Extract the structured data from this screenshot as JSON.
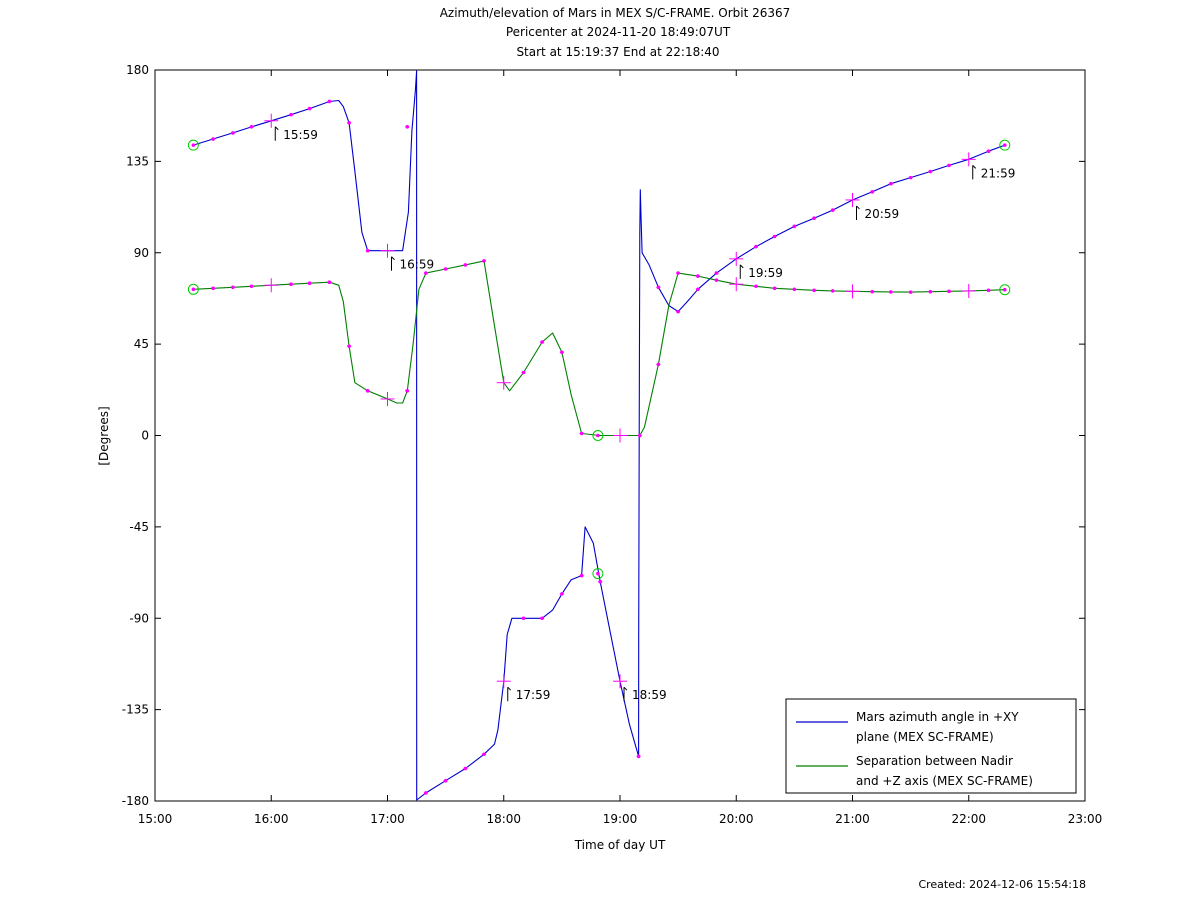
{
  "chart_data": {
    "type": "line",
    "title": "Azimuth/elevation of Mars in MEX S/C-FRAME.  Orbit 26367",
    "subtitle": [
      "Pericenter at 2024-11-20 18:49:07UT",
      "Start at 15:19:37 End at 22:18:40"
    ],
    "xlabel": "Time of day UT",
    "ylabel": "[Degrees]",
    "xlim": [
      15.0,
      23.0
    ],
    "ylim": [
      -180,
      180
    ],
    "x_ticks": [
      {
        "v": 15,
        "label": "15:00"
      },
      {
        "v": 16,
        "label": "16:00"
      },
      {
        "v": 17,
        "label": "17:00"
      },
      {
        "v": 18,
        "label": "18:00"
      },
      {
        "v": 19,
        "label": "19:00"
      },
      {
        "v": 20,
        "label": "20:00"
      },
      {
        "v": 21,
        "label": "21:00"
      },
      {
        "v": 22,
        "label": "22:00"
      },
      {
        "v": 23,
        "label": "23:00"
      }
    ],
    "y_ticks": [
      {
        "v": 180,
        "label": "180"
      },
      {
        "v": 135,
        "label": "135"
      },
      {
        "v": 90,
        "label": "90"
      },
      {
        "v": 45,
        "label": "45"
      },
      {
        "v": 0,
        "label": "0"
      },
      {
        "v": -45,
        "label": "-45"
      },
      {
        "v": -90,
        "label": "-90"
      },
      {
        "v": -135,
        "label": "-135"
      },
      {
        "v": -180,
        "label": "-180"
      }
    ],
    "grid": false,
    "legend_position": "bottom-right",
    "series": [
      {
        "name": "Mars azimuth angle in +XY plane (MEX SC-FRAME)",
        "legend_lines": [
          "Mars azimuth angle in +XY",
          "plane (MEX SC-FRAME)"
        ],
        "color": "#0000cc",
        "points": [
          [
            15.33,
            143
          ],
          [
            15.5,
            146
          ],
          [
            15.67,
            149
          ],
          [
            15.83,
            152
          ],
          [
            16.0,
            155
          ],
          [
            16.17,
            158
          ],
          [
            16.33,
            161
          ],
          [
            16.5,
            164.5
          ],
          [
            16.58,
            165
          ],
          [
            16.62,
            162
          ],
          [
            16.67,
            154
          ],
          [
            16.72,
            130
          ],
          [
            16.78,
            100
          ],
          [
            16.83,
            91
          ],
          [
            17.0,
            91
          ],
          [
            17.13,
            91
          ],
          [
            17.18,
            110
          ],
          [
            17.21,
            150
          ],
          [
            17.24,
            170
          ],
          [
            17.25,
            179.5
          ],
          [
            17.251,
            -179.5
          ],
          [
            17.33,
            -176
          ],
          [
            17.5,
            -170
          ],
          [
            17.67,
            -164
          ],
          [
            17.83,
            -157
          ],
          [
            17.92,
            -152
          ],
          [
            17.95,
            -145
          ],
          [
            18.0,
            -121
          ],
          [
            18.03,
            -98
          ],
          [
            18.07,
            -90
          ],
          [
            18.17,
            -90
          ],
          [
            18.33,
            -90
          ],
          [
            18.42,
            -86
          ],
          [
            18.5,
            -78
          ],
          [
            18.58,
            -71
          ],
          [
            18.67,
            -69
          ],
          [
            18.7,
            -45
          ],
          [
            18.77,
            -53
          ],
          [
            18.83,
            -72
          ],
          [
            18.92,
            -98
          ],
          [
            19.0,
            -121
          ],
          [
            19.08,
            -142
          ],
          [
            19.16,
            -158
          ],
          [
            19.161,
            -100
          ],
          [
            19.165,
            0
          ],
          [
            19.17,
            100
          ],
          [
            19.175,
            121
          ],
          [
            19.18,
            110
          ],
          [
            19.19,
            90
          ],
          [
            19.25,
            84
          ],
          [
            19.33,
            73
          ],
          [
            19.42,
            64
          ],
          [
            19.5,
            61
          ],
          [
            19.58,
            66
          ],
          [
            19.67,
            72
          ],
          [
            19.83,
            80
          ],
          [
            20.0,
            87
          ],
          [
            20.17,
            93
          ],
          [
            20.33,
            98
          ],
          [
            20.5,
            103
          ],
          [
            20.67,
            107
          ],
          [
            20.83,
            111
          ],
          [
            21.0,
            116
          ],
          [
            21.17,
            120
          ],
          [
            21.33,
            124
          ],
          [
            21.5,
            127
          ],
          [
            21.67,
            130
          ],
          [
            21.83,
            133
          ],
          [
            22.0,
            136
          ],
          [
            22.17,
            140
          ],
          [
            22.31,
            143
          ]
        ]
      },
      {
        "name": "Separation between Nadir and +Z axis (MEX SC-FRAME)",
        "legend_lines": [
          "Separation between Nadir",
          "and +Z axis (MEX SC-FRAME)"
        ],
        "color": "#008000",
        "points": [
          [
            15.33,
            72
          ],
          [
            15.5,
            72.5
          ],
          [
            15.67,
            73
          ],
          [
            15.83,
            73.5
          ],
          [
            16.0,
            74
          ],
          [
            16.17,
            74.5
          ],
          [
            16.33,
            75
          ],
          [
            16.5,
            75.5
          ],
          [
            16.58,
            74
          ],
          [
            16.62,
            66
          ],
          [
            16.67,
            44
          ],
          [
            16.72,
            26
          ],
          [
            16.83,
            22
          ],
          [
            17.0,
            18
          ],
          [
            17.08,
            16
          ],
          [
            17.13,
            16
          ],
          [
            17.17,
            22
          ],
          [
            17.22,
            45
          ],
          [
            17.27,
            72
          ],
          [
            17.33,
            80
          ],
          [
            17.5,
            82
          ],
          [
            17.67,
            84
          ],
          [
            17.83,
            86
          ],
          [
            17.92,
            54
          ],
          [
            18.0,
            26
          ],
          [
            18.05,
            22
          ],
          [
            18.17,
            31
          ],
          [
            18.33,
            46
          ],
          [
            18.42,
            50.5
          ],
          [
            18.5,
            41
          ],
          [
            18.58,
            20
          ],
          [
            18.67,
            1
          ],
          [
            18.83,
            0
          ],
          [
            19.0,
            0
          ],
          [
            19.17,
            0
          ],
          [
            19.21,
            4
          ],
          [
            19.33,
            35
          ],
          [
            19.42,
            64
          ],
          [
            19.5,
            80
          ],
          [
            19.67,
            78.5
          ],
          [
            19.83,
            76.5
          ],
          [
            20.0,
            74.5
          ],
          [
            20.17,
            73.5
          ],
          [
            20.33,
            72.5
          ],
          [
            20.5,
            72
          ],
          [
            20.67,
            71.5
          ],
          [
            20.83,
            71.2
          ],
          [
            21.0,
            71
          ],
          [
            21.17,
            70.8
          ],
          [
            21.33,
            70.7
          ],
          [
            21.5,
            70.6
          ],
          [
            21.67,
            70.8
          ],
          [
            21.83,
            71
          ],
          [
            22.0,
            71.2
          ],
          [
            22.17,
            71.5
          ],
          [
            22.31,
            71.8
          ]
        ]
      }
    ],
    "marker_color": "#ff00ff",
    "ring_color": "#00cc00",
    "hour_markers": [
      {
        "x": 16.0,
        "y": 155,
        "label": "15:59"
      },
      {
        "x": 17.0,
        "y": 91,
        "label": "16:59"
      },
      {
        "x": 18.0,
        "y": -121,
        "label": "17:59"
      },
      {
        "x": 19.0,
        "y": -121,
        "label": "18:59"
      },
      {
        "x": 20.0,
        "y": 87,
        "label": "19:59"
      },
      {
        "x": 21.0,
        "y": 116,
        "label": "20:59"
      },
      {
        "x": 22.0,
        "y": 136,
        "label": "21:59"
      }
    ],
    "hour_crosses_green": [
      [
        16.0,
        74
      ],
      [
        17.0,
        18
      ],
      [
        18.0,
        26
      ],
      [
        19.0,
        0
      ],
      [
        20.0,
        74.5
      ],
      [
        21.0,
        71
      ],
      [
        22.0,
        71.2
      ]
    ],
    "dot_markers": [
      [
        15.5,
        146
      ],
      [
        15.67,
        149
      ],
      [
        15.83,
        152
      ],
      [
        16.17,
        158
      ],
      [
        16.33,
        161
      ],
      [
        16.5,
        164.5
      ],
      [
        16.67,
        154
      ],
      [
        16.83,
        91
      ],
      [
        17.17,
        152
      ],
      [
        17.33,
        -176
      ],
      [
        17.5,
        -170
      ],
      [
        17.67,
        -164
      ],
      [
        17.83,
        -157
      ],
      [
        18.17,
        -90
      ],
      [
        18.33,
        -90
      ],
      [
        18.5,
        -78
      ],
      [
        18.67,
        -69
      ],
      [
        18.83,
        -72
      ],
      [
        19.16,
        -158
      ],
      [
        19.33,
        73
      ],
      [
        19.5,
        61
      ],
      [
        19.67,
        72
      ],
      [
        19.83,
        80
      ],
      [
        20.17,
        93
      ],
      [
        20.33,
        98
      ],
      [
        20.5,
        103
      ],
      [
        20.67,
        107
      ],
      [
        20.83,
        111
      ],
      [
        21.17,
        120
      ],
      [
        21.33,
        124
      ],
      [
        21.5,
        127
      ],
      [
        21.67,
        130
      ],
      [
        21.83,
        133
      ],
      [
        22.17,
        140
      ],
      [
        15.5,
        72.5
      ],
      [
        15.67,
        73
      ],
      [
        15.83,
        73.5
      ],
      [
        16.17,
        74.5
      ],
      [
        16.33,
        75
      ],
      [
        16.5,
        75.5
      ],
      [
        16.67,
        44
      ],
      [
        16.83,
        22
      ],
      [
        17.17,
        22
      ],
      [
        17.33,
        80
      ],
      [
        17.5,
        82
      ],
      [
        17.67,
        84
      ],
      [
        17.83,
        86
      ],
      [
        18.17,
        31
      ],
      [
        18.33,
        46
      ],
      [
        18.5,
        41
      ],
      [
        18.67,
        1
      ],
      [
        19.17,
        0
      ],
      [
        19.33,
        35
      ],
      [
        19.5,
        80
      ],
      [
        19.67,
        78.5
      ],
      [
        19.83,
        76.5
      ],
      [
        20.17,
        73.5
      ],
      [
        20.33,
        72.5
      ],
      [
        20.5,
        72
      ],
      [
        20.67,
        71.5
      ],
      [
        20.83,
        71.2
      ],
      [
        21.17,
        70.8
      ],
      [
        21.33,
        70.7
      ],
      [
        21.5,
        70.6
      ],
      [
        21.67,
        70.8
      ],
      [
        21.83,
        71
      ],
      [
        22.17,
        71.5
      ]
    ],
    "ring_markers": [
      [
        15.33,
        143
      ],
      [
        22.31,
        143
      ],
      [
        15.33,
        72
      ],
      [
        22.31,
        71.8
      ],
      [
        18.81,
        0
      ],
      [
        18.81,
        -68
      ]
    ]
  },
  "footer": {
    "created": "Created: 2024-12-06 15:54:18"
  }
}
